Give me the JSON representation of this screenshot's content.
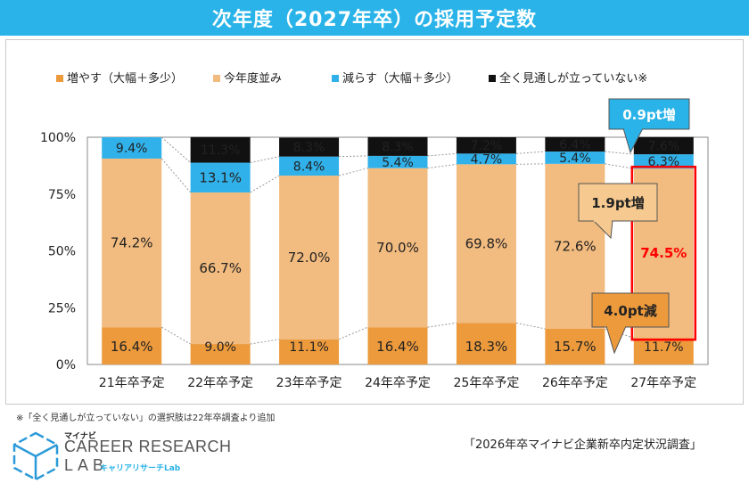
{
  "title": "次年度（2027年卒）の採用予定数",
  "chart_data": {
    "type": "bar",
    "stacked": true,
    "categories": [
      "21年卒予定",
      "22年卒予定",
      "23年卒予定",
      "24年卒予定",
      "25年卒予定",
      "26年卒予定",
      "27年卒予定"
    ],
    "series": [
      {
        "name": "増やす（大幅＋多少）",
        "color": "#ec9a3c",
        "values": [
          16.4,
          9.0,
          11.1,
          16.4,
          18.3,
          15.7,
          11.7
        ]
      },
      {
        "name": "今年度並み",
        "color": "#f2bb7f",
        "values": [
          74.2,
          66.7,
          72.0,
          70.0,
          69.8,
          72.6,
          74.5
        ]
      },
      {
        "name": "減らす（大幅＋多少）",
        "color": "#31b1ea",
        "values": [
          9.4,
          13.1,
          8.4,
          5.4,
          4.7,
          5.4,
          6.3
        ]
      },
      {
        "name": "全く見通しが立っていない※",
        "color": "#111111",
        "values": [
          null,
          11.3,
          8.3,
          8.3,
          7.2,
          6.4,
          7.6
        ]
      }
    ],
    "labels": [
      [
        "16.4%",
        "9.0%",
        "11.1%",
        "16.4%",
        "18.3%",
        "15.7%",
        "11.7%"
      ],
      [
        "74.2%",
        "66.7%",
        "72.0%",
        "70.0%",
        "69.8%",
        "72.6%",
        "74.5%"
      ],
      [
        "9.4%",
        "13.1%",
        "8.4%",
        "5.4%",
        "4.7%",
        "5.4%",
        "6.3%"
      ],
      [
        "",
        "11.3%",
        "8.3%",
        "8.3%",
        "7.2%",
        "6.4%",
        "7.6%"
      ]
    ],
    "yticks": [
      "0%",
      "25%",
      "50%",
      "75%",
      "100%"
    ],
    "ylim": [
      0,
      100
    ],
    "highlight_category": "27年卒予定",
    "highlight_series": "今年度並み",
    "highlight_label_color": "#ff0000",
    "highlight_box_color": "#ff0000",
    "callouts": [
      {
        "text": "0.9pt増",
        "target_series": "減らす（大幅＋多少）",
        "color": "#29b3e8",
        "text_color": "#ffffff"
      },
      {
        "text": "1.9pt増",
        "target_series": "今年度並み",
        "color": "#f5c98f",
        "text_color": "#222222"
      },
      {
        "text": "4.0pt減",
        "target_series": "増やす（大幅＋多少）",
        "color": "#ec9a3c",
        "text_color": "#222222"
      }
    ],
    "legend_position": "top"
  },
  "footnote": "※「全く見通しが立っていない」の選択肢は22年卒調査より追加",
  "source": "「2026年卒マイナビ企業新卒内定状況調査」",
  "brand": {
    "small": "マイナビ",
    "main": "CAREER RESEARCH",
    "lab": "LAB",
    "kana": "キャリアリサーチLab"
  }
}
